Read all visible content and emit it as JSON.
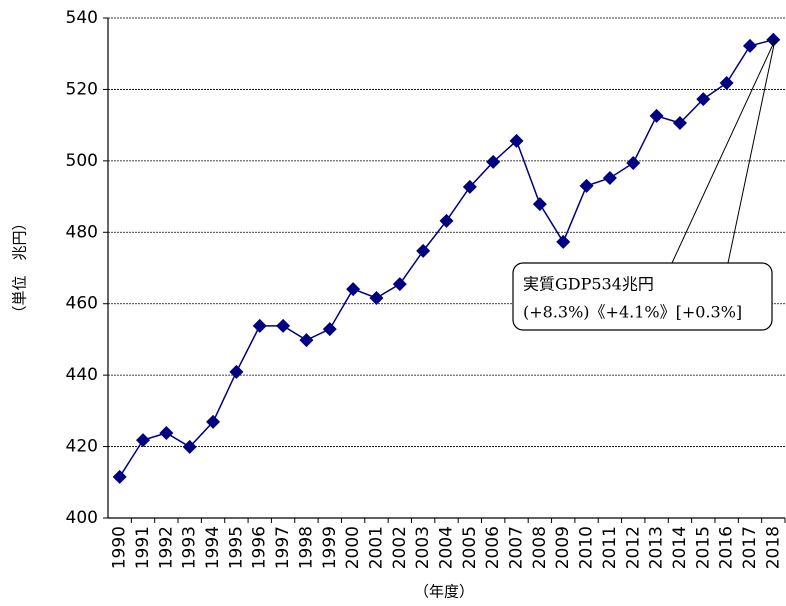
{
  "chart_data": {
    "type": "line",
    "x_label": "（年度）",
    "y_label": "（単位　兆円）",
    "categories": [
      "1990",
      "1991",
      "1992",
      "1993",
      "1994",
      "1995",
      "1996",
      "1997",
      "1998",
      "1999",
      "2000",
      "2001",
      "2002",
      "2003",
      "2004",
      "2005",
      "2006",
      "2007",
      "2008",
      "2009",
      "2010",
      "2011",
      "2012",
      "2013",
      "2014",
      "2015",
      "2016",
      "2017",
      "2018"
    ],
    "series": [
      {
        "name": "実質GDP",
        "color": "#000080",
        "values": [
          411.5,
          421.8,
          423.8,
          419.9,
          426.9,
          440.9,
          453.8,
          453.8,
          449.8,
          452.9,
          464.1,
          461.6,
          465.5,
          474.8,
          483.2,
          492.7,
          499.7,
          505.6,
          487.9,
          477.3,
          493.0,
          495.2,
          499.4,
          512.6,
          510.6,
          517.3,
          521.8,
          532.2,
          533.9
        ]
      }
    ],
    "annotation": [
      "実質GDP534兆円",
      "(+8.3%)《+4.1%》[+0.3%]"
    ],
    "ylim": [
      400,
      540
    ],
    "yticks": [
      400,
      420,
      440,
      460,
      480,
      500,
      520,
      540
    ],
    "grid": true
  }
}
